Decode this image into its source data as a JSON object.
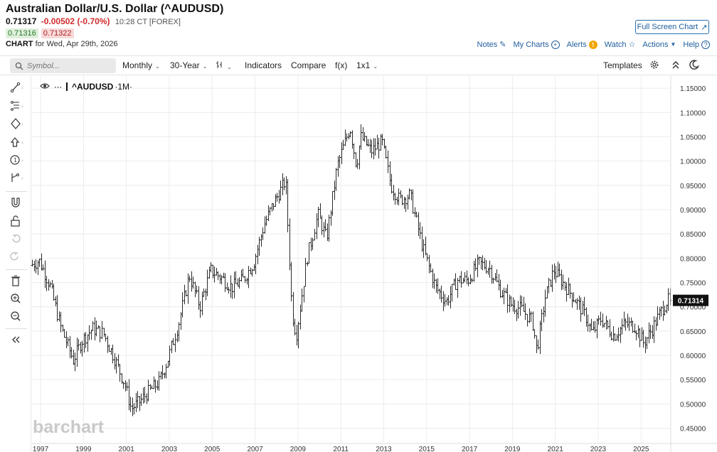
{
  "header": {
    "title": "Australian Dollar/U.S. Dollar (^AUDUSD)",
    "last": "0.71317",
    "change": "-0.00502 (-0.70%)",
    "time": "10:28 CT [FOREX]",
    "bid": "0.71316",
    "ask": "0.71322",
    "chart_label": "CHART",
    "chart_for": "for Wed, Apr 29th, 2026"
  },
  "links": {
    "fullscreen": "Full Screen Chart",
    "notes": "Notes",
    "mycharts": "My Charts",
    "alerts": "Alerts",
    "watch": "Watch",
    "actions": "Actions",
    "help": "Help"
  },
  "toolbar": {
    "search_placeholder": "Symbol...",
    "interval": "Monthly",
    "range": "30-Year",
    "indicators": "Indicators",
    "compare": "Compare",
    "fx": "f(x)",
    "layout": "1x1",
    "templates": "Templates"
  },
  "legend": {
    "symbol": "^AUDUSD",
    "interval": "·1M·"
  },
  "colors": {
    "bar": "#2b2b2b",
    "grid": "#ececec",
    "last_tag_bg": "#111111",
    "link": "#1f5e9e",
    "down": "#d12c2c",
    "watermark": "#c9c9c9"
  },
  "watermark": "barchart",
  "chart_data": {
    "type": "ohlc",
    "symbol": "^AUDUSD",
    "interval": "monthly",
    "x_start_year": 1996.6,
    "x_end_year": 2026.35,
    "y_range": [
      0.42,
      1.175
    ],
    "y_ticks": [
      "1.15000",
      "1.10000",
      "1.05000",
      "1.00000",
      "0.95000",
      "0.90000",
      "0.85000",
      "0.80000",
      "0.75000",
      "0.70000",
      "0.65000",
      "0.60000",
      "0.55000",
      "0.50000",
      "0.45000"
    ],
    "x_ticks": [
      "1997",
      "1999",
      "2001",
      "2003",
      "2005",
      "2007",
      "2009",
      "2011",
      "2013",
      "2015",
      "2017",
      "2019",
      "2021",
      "2023",
      "2025"
    ],
    "last_value": "0.71314",
    "trend": [
      [
        1996.6,
        0.785
      ],
      [
        1997.0,
        0.795
      ],
      [
        1997.5,
        0.745
      ],
      [
        1998.0,
        0.66
      ],
      [
        1998.6,
        0.59
      ],
      [
        1999.0,
        0.63
      ],
      [
        1999.5,
        0.655
      ],
      [
        2000.0,
        0.645
      ],
      [
        2000.5,
        0.595
      ],
      [
        2001.0,
        0.54
      ],
      [
        2001.3,
        0.49
      ],
      [
        2001.7,
        0.505
      ],
      [
        2002.0,
        0.52
      ],
      [
        2002.6,
        0.545
      ],
      [
        2003.0,
        0.59
      ],
      [
        2003.5,
        0.665
      ],
      [
        2004.0,
        0.765
      ],
      [
        2004.5,
        0.7
      ],
      [
        2005.0,
        0.775
      ],
      [
        2005.5,
        0.76
      ],
      [
        2006.0,
        0.74
      ],
      [
        2006.5,
        0.755
      ],
      [
        2007.0,
        0.79
      ],
      [
        2007.5,
        0.87
      ],
      [
        2007.9,
        0.91
      ],
      [
        2008.5,
        0.96
      ],
      [
        2008.8,
        0.69
      ],
      [
        2009.0,
        0.64
      ],
      [
        2009.5,
        0.8
      ],
      [
        2010.0,
        0.89
      ],
      [
        2010.4,
        0.84
      ],
      [
        2010.9,
        0.99
      ],
      [
        2011.5,
        1.07
      ],
      [
        2011.8,
        0.99
      ],
      [
        2012.0,
        1.05
      ],
      [
        2012.5,
        1.02
      ],
      [
        2013.0,
        1.04
      ],
      [
        2013.4,
        0.95
      ],
      [
        2013.8,
        0.92
      ],
      [
        2014.3,
        0.93
      ],
      [
        2014.9,
        0.82
      ],
      [
        2015.5,
        0.74
      ],
      [
        2016.0,
        0.71
      ],
      [
        2016.5,
        0.755
      ],
      [
        2017.0,
        0.755
      ],
      [
        2017.5,
        0.79
      ],
      [
        2018.0,
        0.78
      ],
      [
        2018.5,
        0.735
      ],
      [
        2019.0,
        0.705
      ],
      [
        2019.5,
        0.695
      ],
      [
        2020.0,
        0.67
      ],
      [
        2020.2,
        0.61
      ],
      [
        2020.6,
        0.72
      ],
      [
        2021.0,
        0.775
      ],
      [
        2021.5,
        0.745
      ],
      [
        2022.0,
        0.715
      ],
      [
        2022.5,
        0.68
      ],
      [
        2022.8,
        0.645
      ],
      [
        2023.2,
        0.675
      ],
      [
        2023.8,
        0.64
      ],
      [
        2024.3,
        0.665
      ],
      [
        2024.8,
        0.66
      ],
      [
        2025.2,
        0.625
      ],
      [
        2025.6,
        0.655
      ],
      [
        2026.0,
        0.69
      ],
      [
        2026.3,
        0.713
      ]
    ]
  }
}
